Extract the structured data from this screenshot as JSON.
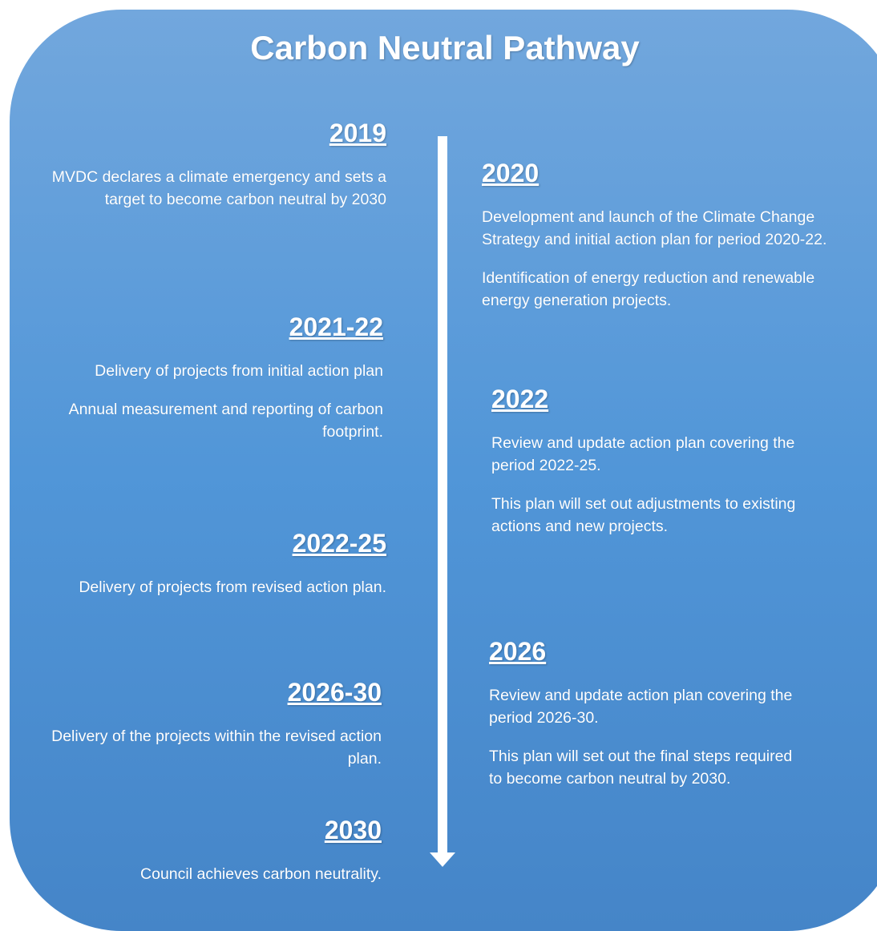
{
  "title": "Carbon Neutral Pathway",
  "left": [
    {
      "year": "2019",
      "paragraphs": [
        "MVDC declares a climate emergency and sets a target to become carbon neutral by 2030"
      ]
    },
    {
      "year": "2021-22",
      "paragraphs": [
        "Delivery of projects from initial action plan",
        "Annual measurement and reporting of carbon footprint."
      ]
    },
    {
      "year": "2022-25",
      "paragraphs": [
        "Delivery of projects from revised action plan."
      ]
    },
    {
      "year": "2026-30",
      "paragraphs": [
        "Delivery of the projects within the revised action plan."
      ]
    },
    {
      "year": "2030",
      "paragraphs": [
        "Council achieves carbon neutrality."
      ]
    }
  ],
  "right": [
    {
      "year": "2020",
      "paragraphs": [
        "Development and launch of the Climate Change Strategy and initial action plan for period 2020-22.",
        "Identification of energy reduction and renewable energy generation projects."
      ]
    },
    {
      "year": "2022",
      "paragraphs": [
        "Review and update action plan covering the period 2022-25.",
        "This plan will set out adjustments to existing actions and new projects."
      ]
    },
    {
      "year": "2026",
      "paragraphs": [
        "Review and update action plan covering the period 2026-30.",
        "This plan will set out the final steps required to become carbon neutral by 2030."
      ]
    }
  ]
}
